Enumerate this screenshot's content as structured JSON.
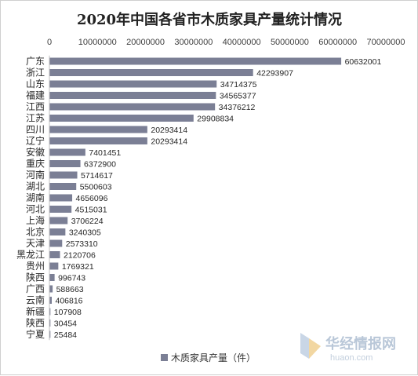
{
  "chart_data": {
    "type": "bar",
    "orientation": "horizontal",
    "title": "2020年中国各省市木质家具产量统计情况",
    "xlim": [
      0,
      70000000
    ],
    "x_ticks": [
      "0",
      "10000000",
      "20000000",
      "30000000",
      "40000000",
      "50000000",
      "60000000",
      "70000000"
    ],
    "x_tick_values": [
      0,
      10000000,
      20000000,
      30000000,
      40000000,
      50000000,
      60000000,
      70000000
    ],
    "x_axis_position": "top",
    "grid": false,
    "legend_position": "bottom",
    "bar_color": "#7b7f95",
    "categories": [
      "广东",
      "浙江",
      "山东",
      "福建",
      "江西",
      "江苏",
      "四川",
      "辽宁",
      "安徽",
      "重庆",
      "河南",
      "湖北",
      "湖南",
      "河北",
      "上海",
      "北京",
      "天津",
      "黑龙江",
      "贵州",
      "陕西",
      "广西",
      "云南",
      "新疆",
      "陕西",
      "宁夏"
    ],
    "series": [
      {
        "name": "木质家具产量（件）",
        "values": [
          60632001,
          42293907,
          34714375,
          34565377,
          34376212,
          29908834,
          20293414,
          20293414,
          7401451,
          6372900,
          5714617,
          5500603,
          4656096,
          4515031,
          3706224,
          3240305,
          2573310,
          2120706,
          1769321,
          996743,
          588663,
          406816,
          107908,
          30454,
          25484
        ]
      }
    ]
  },
  "watermark": {
    "text": "华经情报网",
    "subtext": "huaon.com",
    "color": "#b9c7d8"
  }
}
